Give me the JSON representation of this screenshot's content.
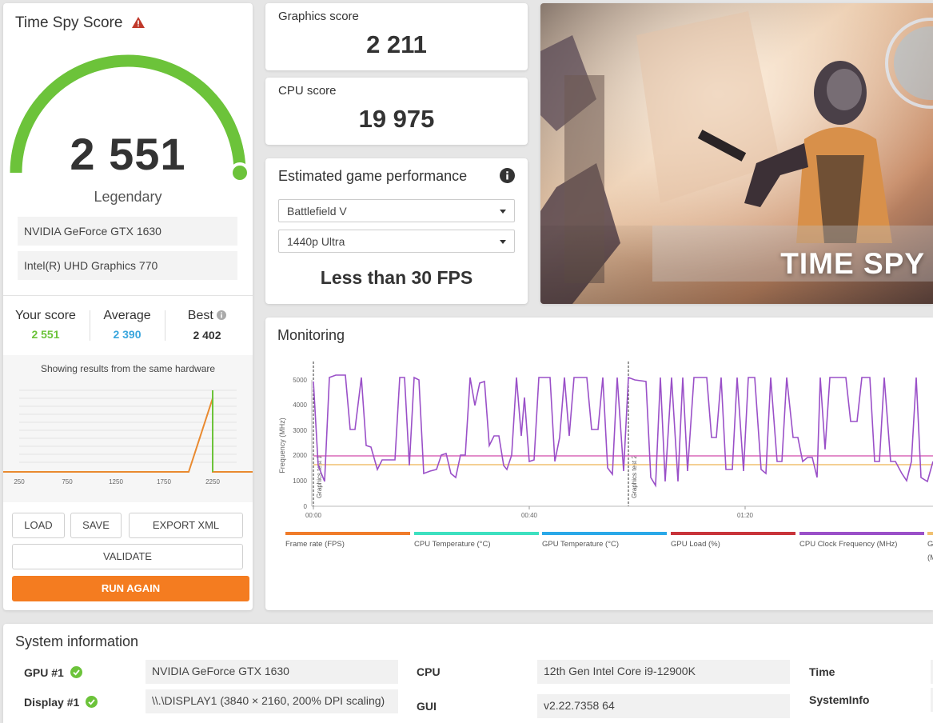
{
  "score_card": {
    "title": "Time Spy Score",
    "score": "2 551",
    "rank": "Legendary",
    "hardware": [
      "NVIDIA GeForce GTX 1630",
      "Intel(R) UHD Graphics 770"
    ],
    "gauge_fraction": 0.95,
    "comparison": {
      "your_label": "Your score",
      "your_value": "2 551",
      "avg_label": "Average",
      "avg_value": "2 390",
      "best_label": "Best",
      "best_value": "2 402"
    },
    "histogram_caption": "Showing results from the same hardware",
    "histogram_ticks": [
      "250",
      "750",
      "1250",
      "1750",
      "2250"
    ],
    "buttons": {
      "load": "LOAD",
      "save": "SAVE",
      "export": "EXPORT XML",
      "validate": "VALIDATE",
      "run": "RUN AGAIN"
    }
  },
  "graphics_score": {
    "label": "Graphics score",
    "value": "2 211"
  },
  "cpu_score": {
    "label": "CPU score",
    "value": "19 975"
  },
  "estimate": {
    "title": "Estimated game performance",
    "game": "Battlefield V",
    "preset": "1440p Ultra",
    "result": "Less than 30 FPS"
  },
  "hero": {
    "title": "TIME SPY"
  },
  "monitoring": {
    "title": "Monitoring",
    "y_label": "Frequency (MHz)",
    "y_ticks": [
      "0",
      "1000",
      "2000",
      "3000",
      "4000",
      "5000"
    ],
    "x_ticks": [
      "00:00",
      "00:40",
      "01:20"
    ],
    "markers": [
      "Graphics test 1",
      "Graphics test 2"
    ],
    "legend": [
      {
        "label": "Frame rate (FPS)",
        "color": "#f07c2a"
      },
      {
        "label": "CPU Temperature (°C)",
        "color": "#3de0c0"
      },
      {
        "label": "GPU Temperature (°C)",
        "color": "#2aa8e8"
      },
      {
        "label": "GPU Load (%)",
        "color": "#c8343a"
      },
      {
        "label": "CPU Clock Frequency (MHz)",
        "color": "#9a50c8"
      },
      {
        "label": "G",
        "color": "#f0c070"
      }
    ],
    "legend_extra": "(M"
  },
  "system": {
    "title": "System information",
    "rows": [
      {
        "key": "GPU #1",
        "value": "NVIDIA GeForce GTX 1630"
      },
      {
        "key": "Display #1",
        "value": "\\\\.\\DISPLAY1 (3840 × 2160, 200% DPI scaling)"
      },
      {
        "key": "CPU",
        "value": "12th Gen Intel Core i9-12900K"
      },
      {
        "key": "GUI",
        "value": "v2.22.7358 64"
      },
      {
        "key": "Time",
        "value": ""
      },
      {
        "key": "SystemInfo",
        "value": ""
      }
    ]
  },
  "colors": {
    "gauge_green": "#6cc33a",
    "your_score": "#6cc33a",
    "average": "#3aa6dd",
    "run_button": "#f47c20",
    "cpu_clock_line": "#9a50c8",
    "gpu_clock_line": "#d968b8",
    "gpu_mem_line": "#f0c070"
  }
}
